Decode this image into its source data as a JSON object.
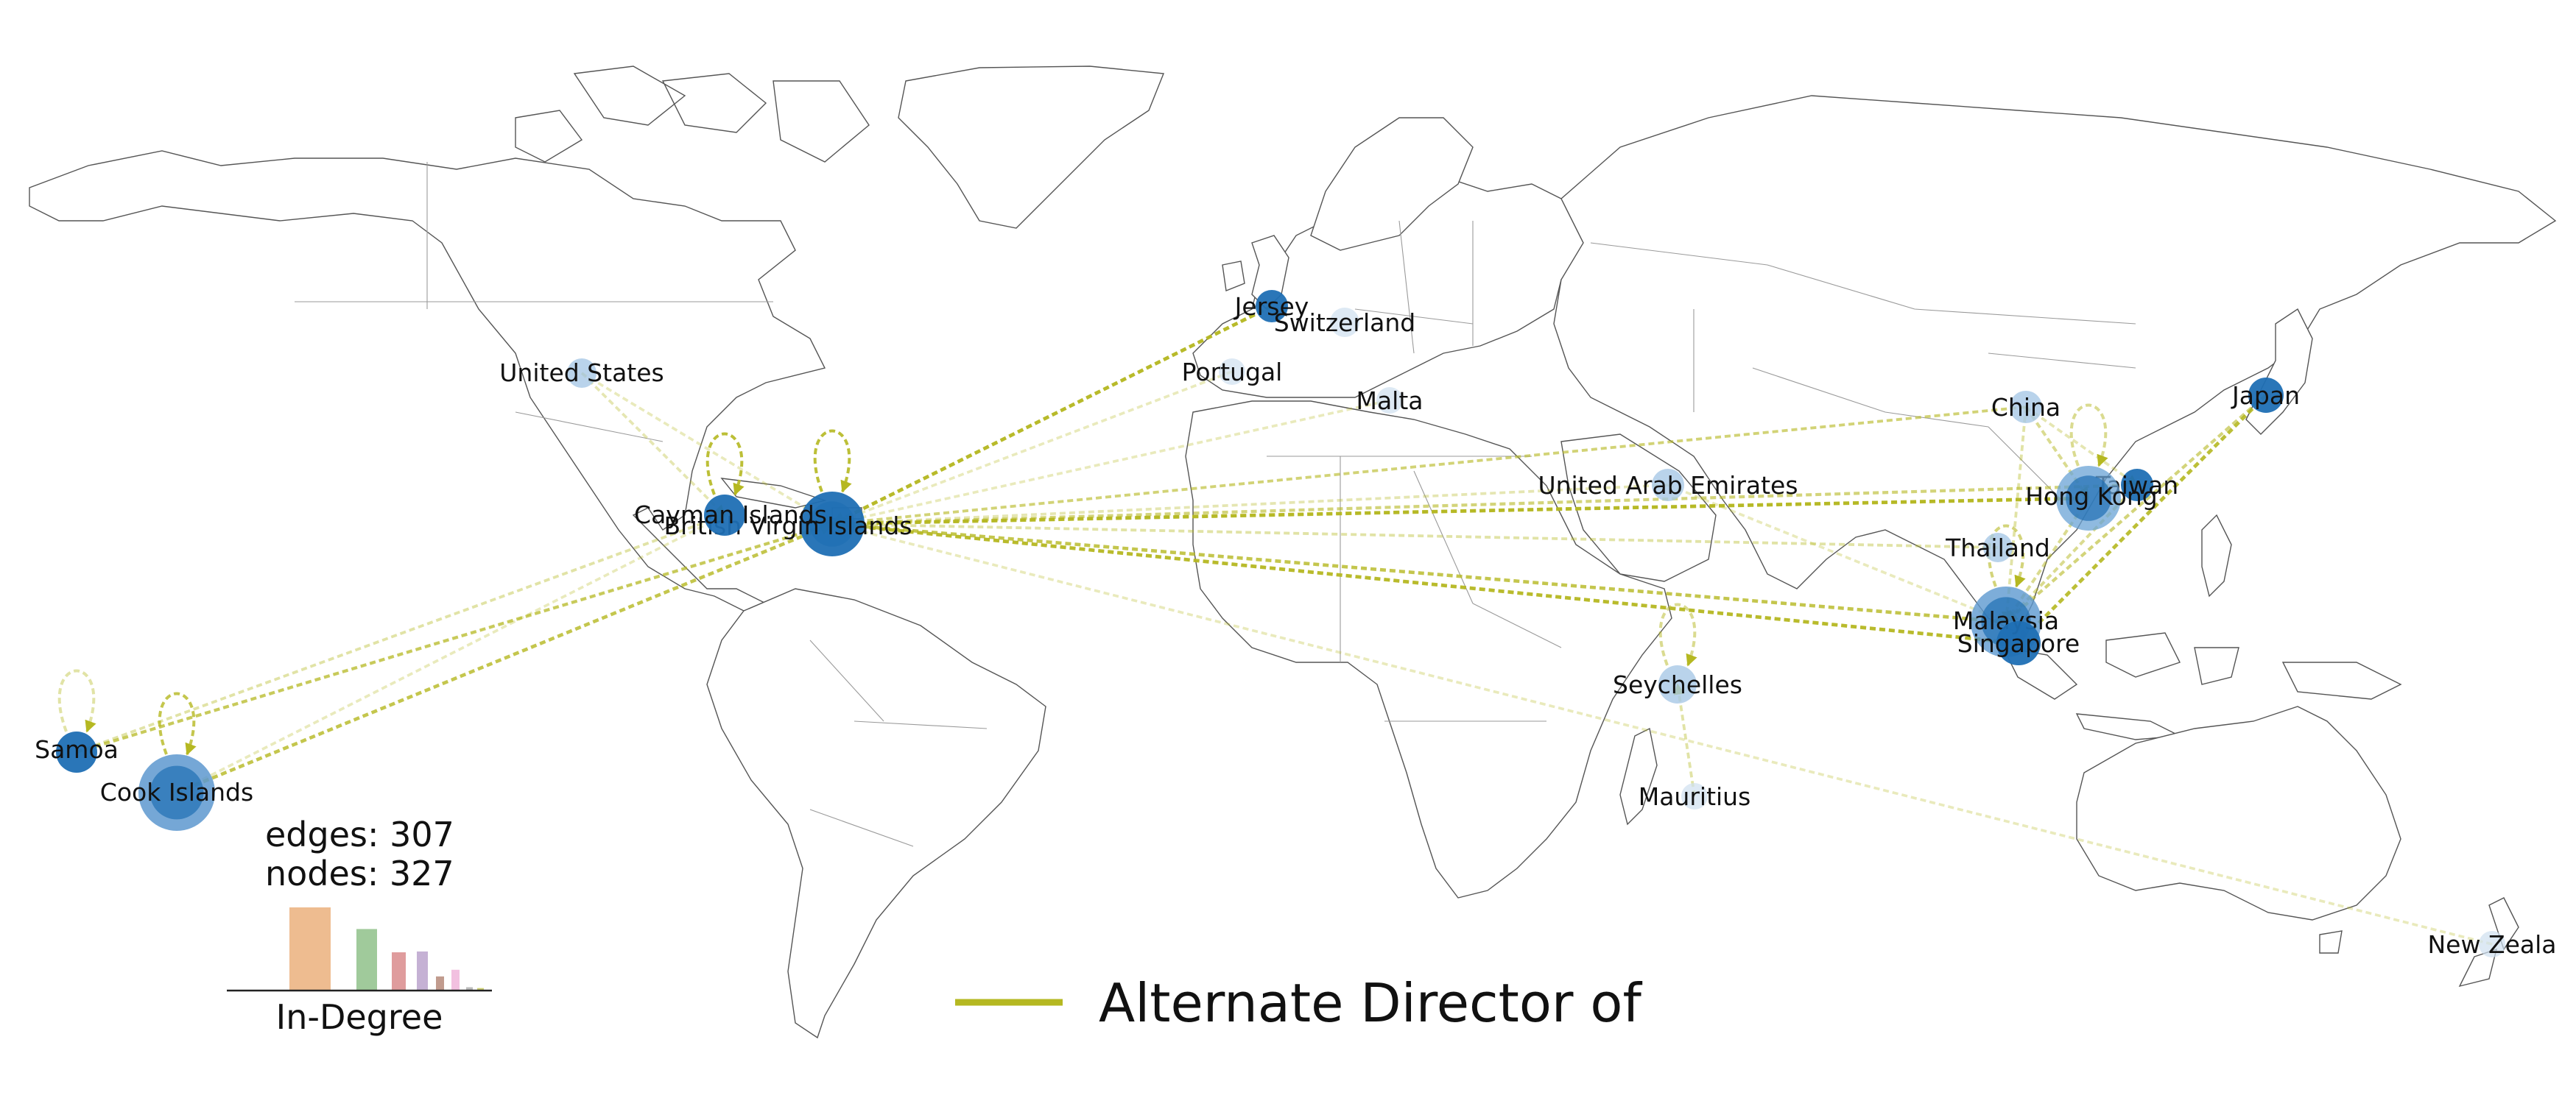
{
  "legend": {
    "label": "Alternate Director of",
    "color": "#b5b821"
  },
  "stats": {
    "edges": "edges: 307",
    "nodes": "nodes: 327"
  },
  "histogram": {
    "title": "In-Degree",
    "bars": [
      {
        "value": 100,
        "color": "#ebb07d"
      },
      {
        "value": 74,
        "color": "#8fc18a"
      },
      {
        "value": 46,
        "color": "#d98b8c"
      },
      {
        "value": 47,
        "color": "#bba3cc"
      },
      {
        "value": 17,
        "color": "#b68a7a"
      },
      {
        "value": 25,
        "color": "#f0b5da"
      },
      {
        "value": 4,
        "color": "#b0b0b0"
      },
      {
        "value": 3,
        "color": "#c7c95a"
      }
    ]
  },
  "nodes": [
    {
      "id": "bvi",
      "label": "British Virgin Islands"
    },
    {
      "id": "cayman",
      "label": "Cayman Islands"
    },
    {
      "id": "us",
      "label": "United States"
    },
    {
      "id": "jersey",
      "label": "Jersey"
    },
    {
      "id": "switzerland",
      "label": "Switzerland"
    },
    {
      "id": "portugal",
      "label": "Portugal"
    },
    {
      "id": "malta",
      "label": "Malta"
    },
    {
      "id": "uae",
      "label": "United Arab Emirates"
    },
    {
      "id": "china",
      "label": "China"
    },
    {
      "id": "japan",
      "label": "Japan"
    },
    {
      "id": "taiwan",
      "label": "Taiwan"
    },
    {
      "id": "hk",
      "label": "Hong Kong"
    },
    {
      "id": "thailand",
      "label": "Thailand"
    },
    {
      "id": "malaysia",
      "label": "Malaysia"
    },
    {
      "id": "singapore",
      "label": "Singapore"
    },
    {
      "id": "seychelles",
      "label": "Seychelles"
    },
    {
      "id": "mauritius",
      "label": "Mauritius"
    },
    {
      "id": "samoa",
      "label": "Samoa"
    },
    {
      "id": "cook",
      "label": "Cook Islands"
    },
    {
      "id": "nz",
      "label": "New Zeala"
    }
  ]
}
